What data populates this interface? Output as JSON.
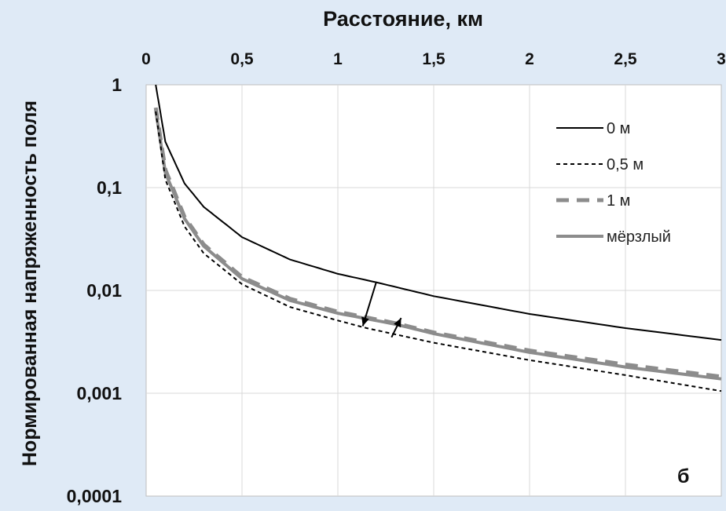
{
  "chart_data": {
    "type": "line",
    "xlabel": "Расстояние, км",
    "ylabel": "Нормированная напряженность поля",
    "panel_label": "б",
    "xlim": [
      0,
      3
    ],
    "ylim": [
      0.0001,
      1
    ],
    "y_scale": "log",
    "x_axis_position": "top",
    "grid": true,
    "legend_position": "top-right",
    "x_ticks": [
      "0",
      "0,5",
      "1",
      "1,5",
      "2",
      "2,5",
      "3"
    ],
    "y_ticks": [
      "1",
      "0,1",
      "0,01",
      "0,001",
      "0,0001"
    ],
    "series": [
      {
        "name": "0 м",
        "color": "#000000",
        "style": "solid",
        "x": [
          0.05,
          0.1,
          0.2,
          0.3,
          0.5,
          0.75,
          1.0,
          1.2,
          1.5,
          2.0,
          2.5,
          3.0
        ],
        "y": [
          1.0,
          0.28,
          0.11,
          0.065,
          0.033,
          0.02,
          0.0145,
          0.012,
          0.0088,
          0.0059,
          0.0043,
          0.0033
        ]
      },
      {
        "name": "0,5 м",
        "color": "#000000",
        "style": "dashed",
        "x": [
          0.05,
          0.1,
          0.2,
          0.3,
          0.5,
          0.75,
          1.0,
          1.15,
          1.5,
          2.0,
          2.5,
          3.0
        ],
        "y": [
          0.55,
          0.12,
          0.042,
          0.023,
          0.0115,
          0.0069,
          0.0051,
          0.0043,
          0.0031,
          0.0021,
          0.0015,
          0.00105
        ]
      },
      {
        "name": "1 м",
        "color": "#8c8c8c",
        "style": "dashed",
        "x": [
          0.05,
          0.1,
          0.2,
          0.3,
          0.5,
          0.75,
          1.0,
          1.3,
          1.5,
          2.0,
          2.5,
          3.0
        ],
        "y": [
          0.6,
          0.15,
          0.052,
          0.028,
          0.0135,
          0.0083,
          0.0062,
          0.0048,
          0.0039,
          0.0026,
          0.0019,
          0.00145
        ]
      },
      {
        "name": "мёрзлый",
        "color": "#8c8c8c",
        "style": "solid",
        "x": [
          0.05,
          0.1,
          0.2,
          0.3,
          0.5,
          0.75,
          1.0,
          1.3,
          1.5,
          2.0,
          2.5,
          3.0
        ],
        "y": [
          0.57,
          0.14,
          0.05,
          0.027,
          0.013,
          0.008,
          0.006,
          0.0047,
          0.0038,
          0.0025,
          0.0018,
          0.00138
        ]
      }
    ],
    "annotations": [
      {
        "type": "arrow",
        "from": [
          1.2,
          0.012
        ],
        "to": [
          1.13,
          0.0045
        ]
      },
      {
        "type": "arrow",
        "from": [
          1.28,
          0.0035
        ],
        "to": [
          1.33,
          0.0054
        ]
      }
    ]
  }
}
